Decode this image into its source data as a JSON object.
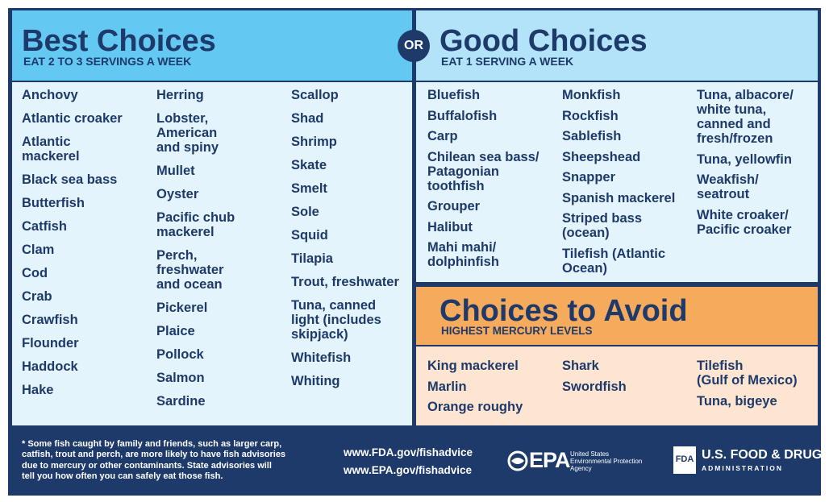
{
  "connector": "OR",
  "best": {
    "title": "Best Choices",
    "subtitle": "EAT 2 TO 3 SERVINGS A WEEK",
    "columns": [
      [
        "Anchovy",
        "Atlantic croaker",
        [
          "Atlantic",
          "mackerel"
        ],
        "Black sea bass",
        "Butterfish",
        "Catfish",
        "Clam",
        "Cod",
        "Crab",
        "Crawfish",
        "Flounder",
        "Haddock",
        "Hake"
      ],
      [
        "Herring",
        [
          "Lobster,",
          "American",
          "and spiny"
        ],
        "Mullet",
        "Oyster",
        [
          "Pacific chub",
          "mackerel"
        ],
        [
          "Perch,",
          "freshwater",
          "and ocean"
        ],
        "Pickerel",
        "Plaice",
        "Pollock",
        "Salmon",
        "Sardine"
      ],
      [
        "Scallop",
        "Shad",
        "Shrimp",
        "Skate",
        "Smelt",
        "Sole",
        "Squid",
        "Tilapia",
        "Trout, freshwater",
        [
          "Tuna, canned",
          "light (includes",
          "skipjack)"
        ],
        "Whitefish",
        "Whiting"
      ]
    ]
  },
  "good": {
    "title": "Good Choices",
    "subtitle": "EAT 1 SERVING A WEEK",
    "columns": [
      [
        "Bluefish",
        "Buffalofish",
        "Carp",
        [
          "Chilean sea bass/",
          "Patagonian",
          "toothfish"
        ],
        "Grouper",
        "Halibut",
        [
          "Mahi mahi/",
          "dolphinfish"
        ]
      ],
      [
        "Monkfish",
        "Rockfish",
        "Sablefish",
        "Sheepshead",
        "Snapper",
        "Spanish mackerel",
        [
          "Striped bass",
          "(ocean)"
        ],
        [
          "Tilefish (Atlantic",
          "Ocean)"
        ]
      ],
      [
        [
          "Tuna, albacore/",
          "white tuna,",
          "canned and",
          "fresh/frozen"
        ],
        "Tuna, yellowfin",
        [
          "Weakfish/",
          "seatrout"
        ],
        [
          "White croaker/",
          "Pacific croaker"
        ]
      ]
    ]
  },
  "avoid": {
    "title": "Choices to Avoid",
    "subtitle": "HIGHEST MERCURY LEVELS",
    "columns": [
      [
        "King mackerel",
        "Marlin",
        "Orange roughy"
      ],
      [
        "Shark",
        "Swordfish"
      ],
      [
        [
          "Tilefish",
          "(Gulf of Mexico)"
        ],
        "Tuna, bigeye"
      ]
    ]
  },
  "footer": {
    "note": [
      "* Some fish caught by family and friends, such as larger carp,",
      "catfish, trout and perch, are more likely to have fish advisories",
      "due to mercury or other contaminants. State advisories will",
      "tell you how often you can safely eat those fish."
    ],
    "links": [
      "www.FDA.gov/fishadvice",
      "www.EPA.gov/fishadvice"
    ],
    "epa": {
      "mark": "EPA",
      "name": [
        "United States",
        "Environmental Protection",
        "Agency"
      ]
    },
    "fda": {
      "mark": "FDA",
      "name": "U.S. FOOD & DRUG",
      "sub": "ADMINISTRATION"
    }
  }
}
